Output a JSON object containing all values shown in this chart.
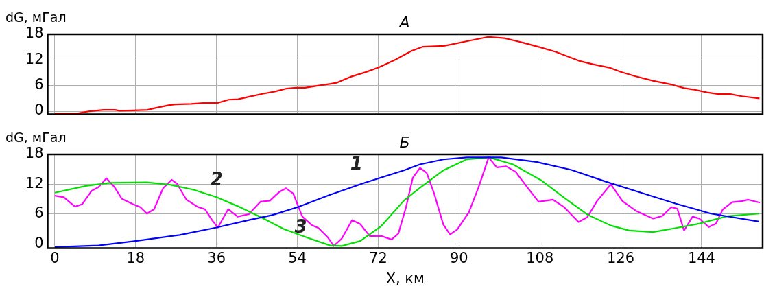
{
  "chart_data": [
    {
      "type": "line",
      "title": "А",
      "ylabel": "dG, мГал",
      "xlim": [
        -1.6,
        157.6
      ],
      "xticks": [
        0,
        18,
        36,
        54,
        72,
        90,
        108,
        126,
        144
      ],
      "ylim": [
        -0.7,
        18
      ],
      "yticks": [
        0,
        6,
        12,
        18
      ],
      "tick_labels": "y",
      "grid": true,
      "legend": false,
      "marker": "none",
      "line_style": "solid",
      "series": [
        {
          "color": "#ff0000",
          "x": [
            0,
            5.2,
            7.7,
            10.8,
            13.4,
            14.4,
            17.5,
            20.6,
            22.2,
            25.3,
            26.8,
            30.4,
            33,
            36.1,
            38.7,
            40.8,
            43.3,
            46.4,
            49,
            51.6,
            53.7,
            55.7,
            58.8,
            61.4,
            62.9,
            66,
            69.1,
            72.2,
            75.9,
            79.4,
            82,
            86.6,
            88.2,
            91.8,
            96.5,
            100.1,
            103.7,
            107.9,
            111.5,
            116.7,
            119.8,
            123.5,
            126,
            129.2,
            133.3,
            137.5,
            140.1,
            142.1,
            145.2,
            147.8,
            150.4,
            153,
            156.9
          ],
          "values": [
            -0.5,
            -0.5,
            0,
            0.3,
            0.3,
            0.1,
            0.2,
            0.3,
            0.7,
            1.4,
            1.6,
            1.7,
            1.9,
            1.9,
            2.7,
            2.8,
            3.4,
            4.1,
            4.6,
            5.3,
            5.5,
            5.5,
            6,
            6.4,
            6.7,
            8.1,
            9.1,
            10.3,
            12.1,
            14.1,
            15.1,
            15.3,
            15.6,
            16.4,
            17.4,
            17.1,
            16.2,
            15,
            13.9,
            11.8,
            11,
            10.2,
            9.2,
            8.2,
            7.1,
            6.2,
            5.4,
            5.1,
            4.4,
            4,
            4,
            3.5,
            3
          ]
        }
      ]
    },
    {
      "type": "line",
      "title": "Б",
      "ylabel": "dG, мГал",
      "xlabel": "X, км",
      "xlim": [
        -1.6,
        157.6
      ],
      "xticks": [
        0,
        18,
        36,
        54,
        72,
        90,
        108,
        126,
        144
      ],
      "ylim": [
        -0.85,
        18
      ],
      "yticks": [
        0,
        6,
        12,
        18
      ],
      "grid": true,
      "legend": false,
      "marker": "none",
      "line_style": "solid",
      "series": [
        {
          "name": "1",
          "color": "#0000ff",
          "x": [
            0,
            9.7,
            18,
            27.8,
            36,
            43.2,
            48.4,
            54.1,
            61.3,
            69,
            77.7,
            81.3,
            86.5,
            91.7,
            99.4,
            107.2,
            115,
            122.8,
            130.5,
            138.3,
            146.1,
            156.8
          ],
          "values": [
            -0.6,
            -0.3,
            0.6,
            1.8,
            3.3,
            4.8,
            5.8,
            7.4,
            9.9,
            12.3,
            14.8,
            16,
            17,
            17.4,
            17.4,
            16.5,
            14.9,
            12.5,
            10.3,
            8.1,
            6.1,
            4.5
          ]
        },
        {
          "name": "2",
          "color": "#00e000",
          "x": [
            0,
            7.1,
            12.3,
            20.5,
            25.7,
            30.9,
            36,
            40.7,
            45.8,
            51,
            56.1,
            61.3,
            63.9,
            68,
            72.7,
            77.7,
            81.3,
            86.5,
            91.7,
            96.8,
            102,
            108.3,
            113.4,
            118.6,
            123.8,
            127.9,
            133.2,
            138.3,
            143.5,
            149.8,
            156.8
          ],
          "values": [
            10.3,
            11.7,
            12.3,
            12.4,
            11.9,
            10.9,
            9.4,
            7.6,
            5.4,
            3,
            1.3,
            -0.3,
            -0.4,
            0.6,
            3.6,
            8.7,
            11.3,
            14.8,
            17,
            17.4,
            16,
            12.8,
            9.3,
            5.9,
            3.7,
            2.7,
            2.4,
            3.2,
            4.1,
            5.6,
            6.1
          ]
        },
        {
          "name": "3",
          "color": "#ff00ff",
          "x": [
            0,
            2,
            4.5,
            6.1,
            8.2,
            9.7,
            11.5,
            13.3,
            14.9,
            17.4,
            19,
            20.5,
            22.1,
            24.1,
            26,
            27.2,
            29.3,
            31.9,
            33.4,
            35,
            36.3,
            38.6,
            40.7,
            43.2,
            45.8,
            47.9,
            49.9,
            51.5,
            53.1,
            55.1,
            57.2,
            58.7,
            60.8,
            62.1,
            63.9,
            66.2,
            68,
            70.1,
            72.7,
            75,
            76.5,
            78.2,
            79.7,
            81.3,
            82.8,
            84.4,
            86.5,
            88,
            89.6,
            92.2,
            94.3,
            96.6,
            98.4,
            100.5,
            102.6,
            105.1,
            107.7,
            110.9,
            113.4,
            116.6,
            118.6,
            120.7,
            123.8,
            126.4,
            129.5,
            133.2,
            135.2,
            137.3,
            138.6,
            140.1,
            142,
            143.5,
            145.6,
            147.2,
            148.7,
            150.8,
            152.9,
            154.4,
            157
          ],
          "values": [
            9.7,
            9.4,
            7.5,
            8,
            10.7,
            11.4,
            13.2,
            11.4,
            9.1,
            8,
            7.4,
            6.1,
            7,
            11.2,
            12.9,
            12.1,
            8.9,
            7.4,
            7,
            4.8,
            3.3,
            7,
            5.5,
            6,
            8.5,
            8.7,
            10.4,
            11.2,
            10.1,
            5.5,
            3.8,
            3.2,
            1.3,
            -0.4,
            1.1,
            4.8,
            4,
            1.6,
            1.6,
            0.9,
            2.1,
            7.4,
            13.3,
            15.3,
            14.3,
            10.3,
            3.9,
            1.9,
            2.9,
            6.4,
            11.3,
            17.4,
            15.4,
            15.6,
            14.5,
            11.5,
            8.5,
            8.9,
            7.4,
            4.4,
            5.4,
            8.6,
            12,
            8.6,
            6.6,
            5.1,
            5.6,
            7.4,
            7.1,
            2.7,
            5.5,
            5.1,
            3.4,
            4.1,
            6.9,
            8.4,
            8.6,
            8.9,
            8.3
          ]
        }
      ]
    }
  ]
}
